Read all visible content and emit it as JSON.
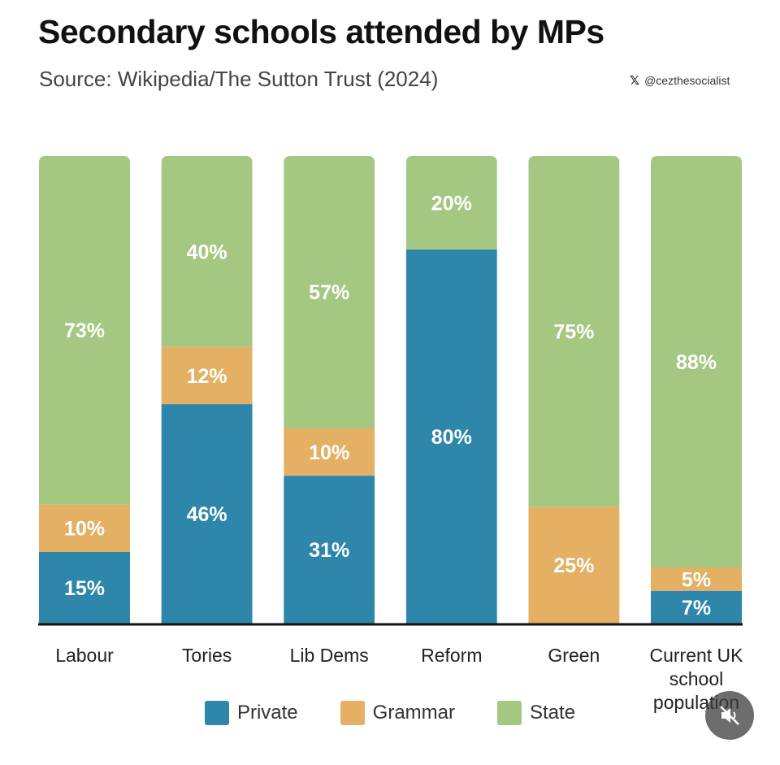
{
  "title": "Secondary schools attended by MPs",
  "subtitle": "Source: Wikipedia/The Sutton Trust (2024)",
  "handle": "@cezthesocialist",
  "handle_icon": "x-logo-icon",
  "colors": {
    "Private": "#2e86ab",
    "Grammar": "#e3b064",
    "State": "#a4c882",
    "label": "#ffffff",
    "axis": "#111111"
  },
  "chart_data": {
    "type": "bar",
    "stacked": true,
    "title": "Secondary schools attended by MPs",
    "subtitle": "Source: Wikipedia/The Sutton Trust (2024)",
    "categories": [
      "Labour",
      "Tories",
      "Lib Dems",
      "Reform",
      "Green",
      "Current UK school population"
    ],
    "category_lines": [
      [
        "Labour"
      ],
      [
        "Tories"
      ],
      [
        "Lib Dems"
      ],
      [
        "Reform"
      ],
      [
        "Green"
      ],
      [
        "Current UK",
        "school",
        "population"
      ]
    ],
    "series": [
      {
        "name": "Private",
        "values": [
          15,
          46,
          31,
          80,
          0,
          7
        ]
      },
      {
        "name": "Grammar",
        "values": [
          10,
          12,
          10,
          0,
          25,
          5
        ]
      },
      {
        "name": "State",
        "values": [
          73,
          40,
          57,
          20,
          75,
          88
        ]
      }
    ],
    "data_labels": true,
    "label_suffix": "%",
    "ylim": [
      0,
      100
    ],
    "xlabel": "",
    "ylabel": "",
    "grid": false,
    "legend": "bottom-center"
  },
  "legend": [
    {
      "label": "Private"
    },
    {
      "label": "Grammar"
    },
    {
      "label": "State"
    }
  ],
  "mute_icon": "muted-speaker-icon"
}
